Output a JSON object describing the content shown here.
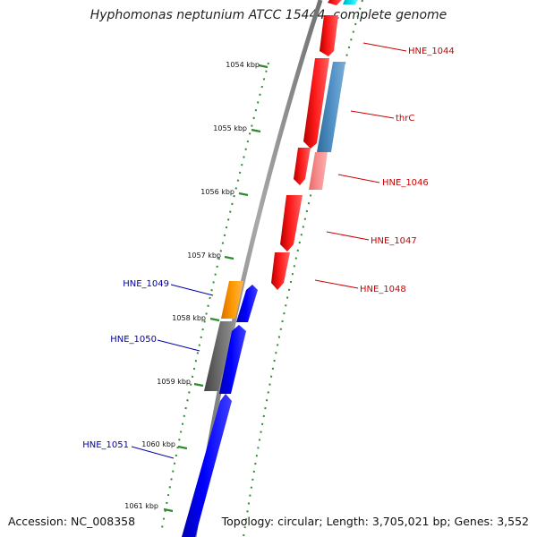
{
  "title": "Hyphomonas neptunium ATCC 15444, complete genome",
  "footer": {
    "accession": "Accession: NC_008358",
    "summary": "Topology: circular; Length: 3,705,021 bp; Genes: 3,552"
  },
  "ruler": {
    "unit": "kbp",
    "labels": [
      "1054 kbp",
      "1055 kbp",
      "1056 kbp",
      "1057 kbp",
      "1058 kbp",
      "1059 kbp",
      "1060 kbp",
      "1061 kbp"
    ]
  },
  "genes": [
    {
      "name": "HNE_1044",
      "strand": "forward",
      "color": "#ff0000",
      "label_color": "#cc0000"
    },
    {
      "name": "thrC",
      "strand": "forward",
      "color": "#4682b4",
      "label_color": "#cc0000"
    },
    {
      "name": "HNE_1046",
      "strand": "forward",
      "color": "#f08080",
      "label_color": "#cc0000"
    },
    {
      "name": "HNE_1047",
      "strand": "forward",
      "color": "#ff0000",
      "label_color": "#cc0000"
    },
    {
      "name": "HNE_1048",
      "strand": "forward",
      "color": "#ff0000",
      "label_color": "#cc0000"
    },
    {
      "name": "HNE_1049",
      "strand": "reverse",
      "color": "#ff8c00",
      "label_color": "#0000aa"
    },
    {
      "name": "HNE_1050",
      "strand": "reverse",
      "color": "#666666",
      "label_color": "#0000aa"
    },
    {
      "name": "HNE_1051",
      "strand": "reverse",
      "color": "#0000ff",
      "label_color": "#0000aa"
    }
  ],
  "colors": {
    "backbone": "#888888",
    "tick": "#2e8b2e",
    "forward_gene": "#ff0000",
    "reverse_gene": "#0000ff",
    "cyan_gene": "#00d0e0"
  }
}
